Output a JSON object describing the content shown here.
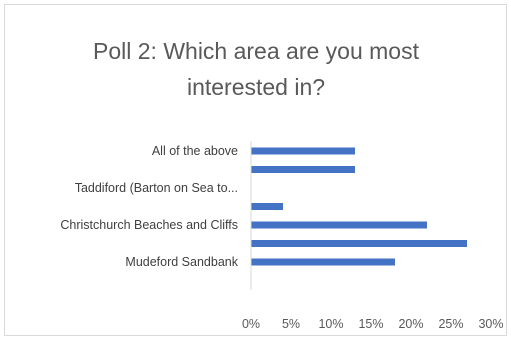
{
  "chart_data": {
    "type": "bar",
    "orientation": "horizontal",
    "title": "Poll 2: Which area are you most interested in?",
    "title_lines": [
      "Poll 2: Which area are you most",
      "interested in?"
    ],
    "category_labels": [
      "All of the above",
      "",
      "Taddiford (Barton on Sea to...",
      "",
      "Christchurch Beaches and Cliffs",
      "",
      "Mudeford Sandbank"
    ],
    "values": [
      13,
      13,
      0,
      4,
      22,
      27,
      18
    ],
    "xlim": [
      0,
      30
    ],
    "x_ticks": [
      "0%",
      "5%",
      "10%",
      "15%",
      "20%",
      "25%",
      "30%"
    ],
    "bar_color": "#4472c4",
    "grid": false,
    "legend": "none"
  }
}
